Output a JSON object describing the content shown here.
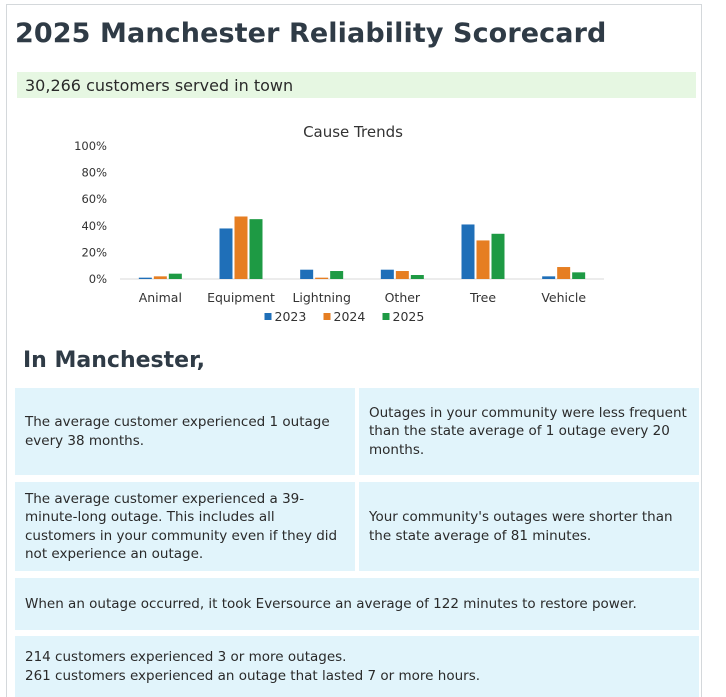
{
  "title": "2025 Manchester Reliability Scorecard",
  "customers_served": "30,266 customers served in town",
  "chart_data": {
    "type": "bar",
    "title": "Cause Trends",
    "categories": [
      "Animal",
      "Equipment",
      "Lightning",
      "Other",
      "Tree",
      "Vehicle"
    ],
    "series": [
      {
        "name": "2023",
        "color": "#1f6fb8",
        "values": [
          1,
          38,
          7,
          7,
          41,
          2
        ]
      },
      {
        "name": "2024",
        "color": "#e67e22",
        "values": [
          2,
          47,
          1,
          6,
          29,
          9
        ]
      },
      {
        "name": "2025",
        "color": "#1e9a44",
        "values": [
          4,
          45,
          6,
          3,
          34,
          5
        ]
      }
    ],
    "ylim": [
      0,
      100
    ],
    "y_ticks": [
      "0%",
      "20%",
      "40%",
      "60%",
      "80%",
      "100%"
    ],
    "legend": "bottom",
    "grid": false
  },
  "section_heading": "In Manchester,",
  "stats": {
    "freq_customer": "The average customer experienced 1 outage every 38 months.",
    "freq_compare": "Outages in your community were less frequent than the state average of 1 outage every 20 months.",
    "duration_customer": "The average customer experienced a 39-minute-long outage. This includes all customers in your community even if they did not experience an outage.",
    "duration_compare": "Your community's outages were shorter than the state average of 81 minutes.",
    "restore": "When an outage occurred, it took Eversource an average of 122 minutes to restore power.",
    "multi_outage": "214 customers experienced 3 or more outages.",
    "long_outage": "261 customers experienced an outage that lasted 7 or more hours."
  }
}
